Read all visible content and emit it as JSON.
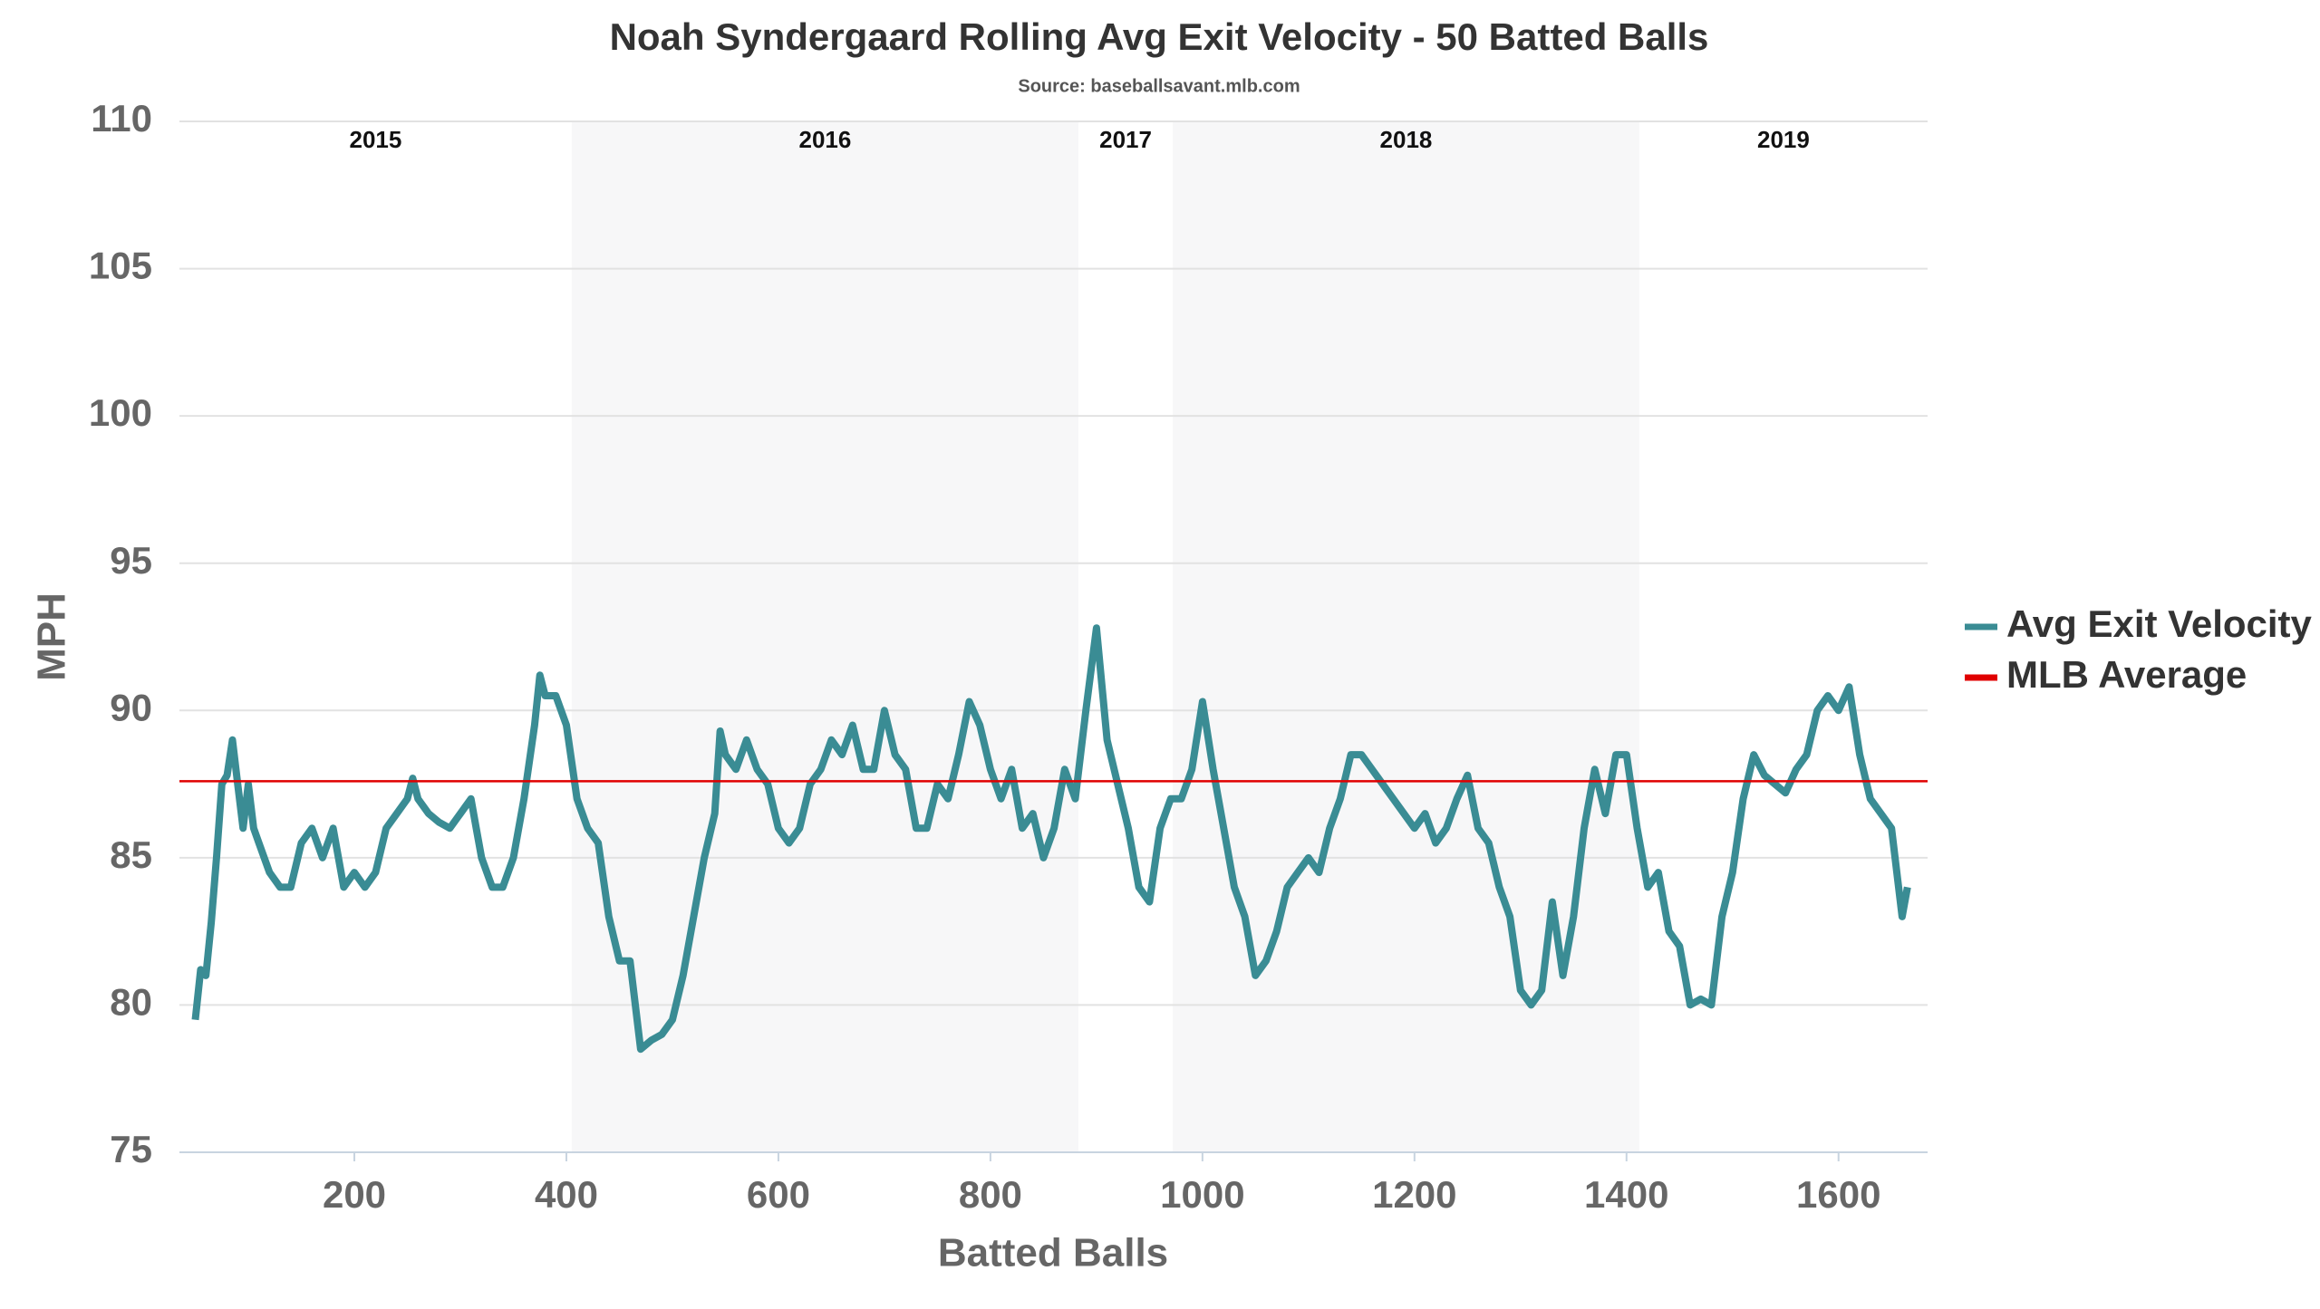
{
  "chart_data": {
    "type": "line",
    "title": "Noah Syndergaard Rolling Avg Exit Velocity - 50 Batted Balls",
    "subtitle": "Source: baseballsavant.mlb.com",
    "x_label": "Batted Balls",
    "y_label": "MPH",
    "xlim": [
      35,
      1684
    ],
    "ylim": [
      75,
      110
    ],
    "xticks": [
      200,
      400,
      600,
      800,
      1000,
      1200,
      1400,
      1600
    ],
    "yticks": [
      75,
      80,
      85,
      90,
      95,
      100,
      105,
      110
    ],
    "grid": true,
    "legend": "right",
    "year_spans": [
      {
        "label": "2015",
        "start": 35,
        "end": 405,
        "shaded": false
      },
      {
        "label": "2016",
        "start": 405,
        "end": 883,
        "shaded": true
      },
      {
        "label": "2017",
        "start": 883,
        "end": 972,
        "shaded": false
      },
      {
        "label": "2018",
        "start": 972,
        "end": 1412,
        "shaded": true
      },
      {
        "label": "2019",
        "start": 1412,
        "end": 1684,
        "shaded": false
      }
    ],
    "reference_line": {
      "name": "MLB Average",
      "value": 87.6,
      "color": "#e00000"
    },
    "x": [
      50,
      55,
      60,
      65,
      70,
      75,
      80,
      85,
      90,
      95,
      100,
      105,
      110,
      120,
      130,
      140,
      150,
      160,
      170,
      180,
      190,
      200,
      210,
      220,
      230,
      240,
      250,
      255,
      260,
      270,
      280,
      290,
      300,
      310,
      315,
      320,
      330,
      340,
      350,
      360,
      370,
      375,
      380,
      390,
      400,
      410,
      420,
      430,
      440,
      450,
      460,
      470,
      480,
      490,
      500,
      510,
      520,
      530,
      540,
      545,
      550,
      560,
      570,
      580,
      590,
      600,
      610,
      620,
      630,
      640,
      650,
      660,
      670,
      680,
      690,
      700,
      710,
      720,
      730,
      740,
      750,
      760,
      770,
      780,
      790,
      800,
      810,
      820,
      830,
      840,
      850,
      860,
      870,
      880,
      890,
      900,
      910,
      920,
      930,
      940,
      950,
      960,
      970,
      980,
      990,
      1000,
      1010,
      1020,
      1030,
      1040,
      1050,
      1060,
      1070,
      1080,
      1090,
      1100,
      1110,
      1120,
      1130,
      1140,
      1150,
      1160,
      1170,
      1180,
      1190,
      1200,
      1210,
      1220,
      1230,
      1240,
      1250,
      1260,
      1270,
      1280,
      1290,
      1300,
      1310,
      1320,
      1330,
      1340,
      1350,
      1360,
      1370,
      1380,
      1390,
      1400,
      1410,
      1420,
      1430,
      1440,
      1450,
      1460,
      1470,
      1480,
      1490,
      1500,
      1510,
      1520,
      1530,
      1540,
      1550,
      1560,
      1570,
      1580,
      1590,
      1600,
      1610,
      1620,
      1630,
      1640,
      1650,
      1660,
      1665
    ],
    "series": [
      {
        "name": "Avg Exit Velocity",
        "color": "#3a8c94",
        "values": [
          79.5,
          81.2,
          81.0,
          82.8,
          85,
          87.5,
          87.8,
          89.0,
          87.5,
          86,
          87.5,
          86,
          85.5,
          84.5,
          84,
          84,
          85.5,
          86,
          85,
          86,
          84,
          84.5,
          84,
          84.5,
          86,
          86.5,
          87,
          87.7,
          87,
          86.5,
          86.2,
          86,
          86.5,
          87,
          86,
          85,
          84,
          84,
          85,
          87,
          89.5,
          91.2,
          90.5,
          90.5,
          89.5,
          87,
          86,
          85.5,
          83,
          81.5,
          81.5,
          78.5,
          78.8,
          79,
          79.5,
          81,
          83,
          85,
          86.5,
          89.3,
          88.5,
          88,
          89,
          88,
          87.5,
          86,
          85.5,
          86,
          87.5,
          88,
          89,
          88.5,
          89.5,
          88,
          88,
          90,
          88.5,
          88,
          86,
          86,
          87.5,
          87,
          88.5,
          90.3,
          89.5,
          88,
          87,
          88,
          86,
          86.5,
          85,
          86,
          88,
          87,
          90,
          92.8,
          89,
          87.5,
          86,
          84,
          83.5,
          86,
          87,
          87,
          88,
          90.3,
          88,
          86,
          84,
          83,
          81,
          81.5,
          82.5,
          84,
          84.5,
          85,
          84.5,
          86,
          87,
          88.5,
          88.5,
          88,
          87.5,
          87,
          86.5,
          86,
          86.5,
          85.5,
          86,
          87,
          87.8,
          86,
          85.5,
          84,
          83,
          80.5,
          80,
          80.5,
          83.5,
          81,
          83,
          86,
          88,
          86.5,
          88.5,
          88.5,
          86,
          84,
          84.5,
          82.5,
          82,
          80,
          80.2,
          80,
          83,
          84.5,
          87,
          88.5,
          87.8,
          87.5,
          87.2,
          88,
          88.5,
          90,
          90.5,
          90,
          90.8,
          88.5,
          87,
          86.5,
          86,
          83,
          84
        ]
      }
    ]
  }
}
